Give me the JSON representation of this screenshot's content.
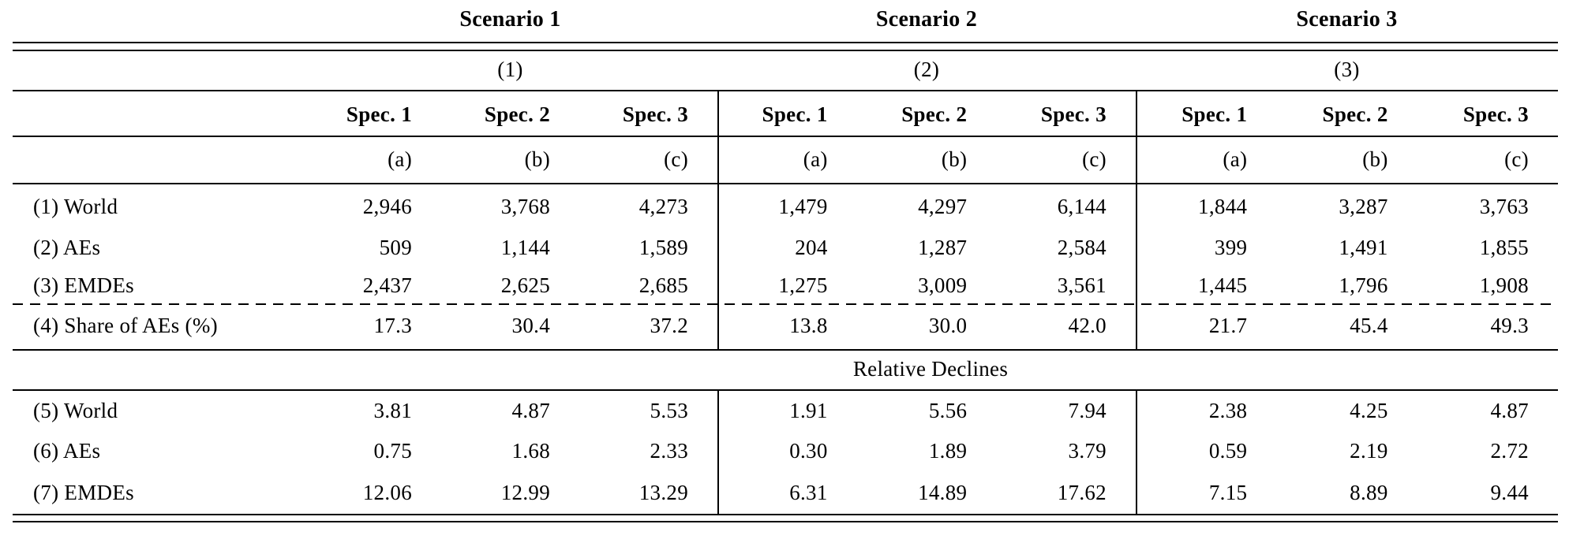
{
  "table": {
    "scenario_headers": [
      "Scenario 1",
      "Scenario 2",
      "Scenario 3"
    ],
    "group_numbers": [
      "(1)",
      "(2)",
      "(3)"
    ],
    "spec_headers": [
      "Spec. 1",
      "Spec. 2",
      "Spec. 3",
      "Spec. 1",
      "Spec. 2",
      "Spec. 3",
      "Spec. 1",
      "Spec. 2",
      "Spec. 3"
    ],
    "column_letters": [
      "(a)",
      "(b)",
      "(c)",
      "(a)",
      "(b)",
      "(c)",
      "(a)",
      "(b)",
      "(c)"
    ],
    "level_rows": [
      {
        "label": "(1) World",
        "values": [
          "2,946",
          "3,768",
          "4,273",
          "1,479",
          "4,297",
          "6,144",
          "1,844",
          "3,287",
          "3,763"
        ]
      },
      {
        "label": "(2) AEs",
        "values": [
          "509",
          "1,144",
          "1,589",
          "204",
          "1,287",
          "2,584",
          "399",
          "1,491",
          "1,855"
        ]
      },
      {
        "label": "(3) EMDEs",
        "values": [
          "2,437",
          "2,625",
          "2,685",
          "1,275",
          "3,009",
          "3,561",
          "1,445",
          "1,796",
          "1,908"
        ]
      },
      {
        "label": "(4) Share of AEs (%)",
        "values": [
          "17.3",
          "30.4",
          "37.2",
          "13.8",
          "30.0",
          "42.0",
          "21.7",
          "45.4",
          "49.3"
        ]
      }
    ],
    "section2_label": "Relative Declines",
    "relative_decline_rows": [
      {
        "label": "(5) World",
        "values": [
          "3.81",
          "4.87",
          "5.53",
          "1.91",
          "5.56",
          "7.94",
          "2.38",
          "4.25",
          "4.87"
        ]
      },
      {
        "label": "(6) AEs",
        "values": [
          "0.75",
          "1.68",
          "2.33",
          "0.30",
          "1.89",
          "3.79",
          "0.59",
          "2.19",
          "2.72"
        ]
      },
      {
        "label": "(7) EMDEs",
        "values": [
          "12.06",
          "12.99",
          "13.29",
          "6.31",
          "14.89",
          "17.62",
          "7.15",
          "8.89",
          "9.44"
        ]
      }
    ],
    "rule_color": "#000000"
  }
}
